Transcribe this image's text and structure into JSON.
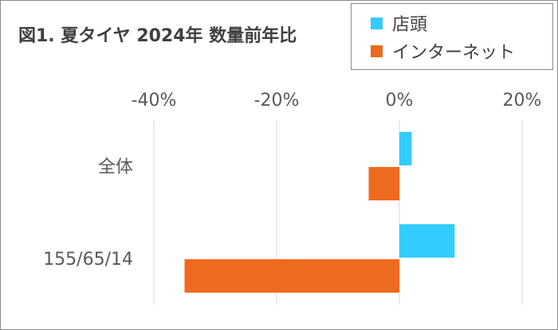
{
  "chart_data": {
    "type": "bar",
    "orientation": "horizontal",
    "title": "図1. 夏タイヤ 2024年 数量前年比",
    "categories": [
      "全体",
      "155/65/14"
    ],
    "series": [
      {
        "name": "店頭",
        "color": "#33ccff",
        "values": [
          2,
          9
        ]
      },
      {
        "name": "インターネット",
        "color": "#ee6a1e",
        "values": [
          -5,
          -35
        ]
      }
    ],
    "xlim": [
      -40,
      20
    ],
    "x_ticks": [
      -40,
      -20,
      0,
      20
    ],
    "x_tick_labels": [
      "-40%",
      "-20%",
      "0%",
      "20%"
    ],
    "x_axis_position": "top",
    "unit": "%",
    "grid": "vertical",
    "legend_position": "top-right",
    "xlabel": "",
    "ylabel": ""
  }
}
